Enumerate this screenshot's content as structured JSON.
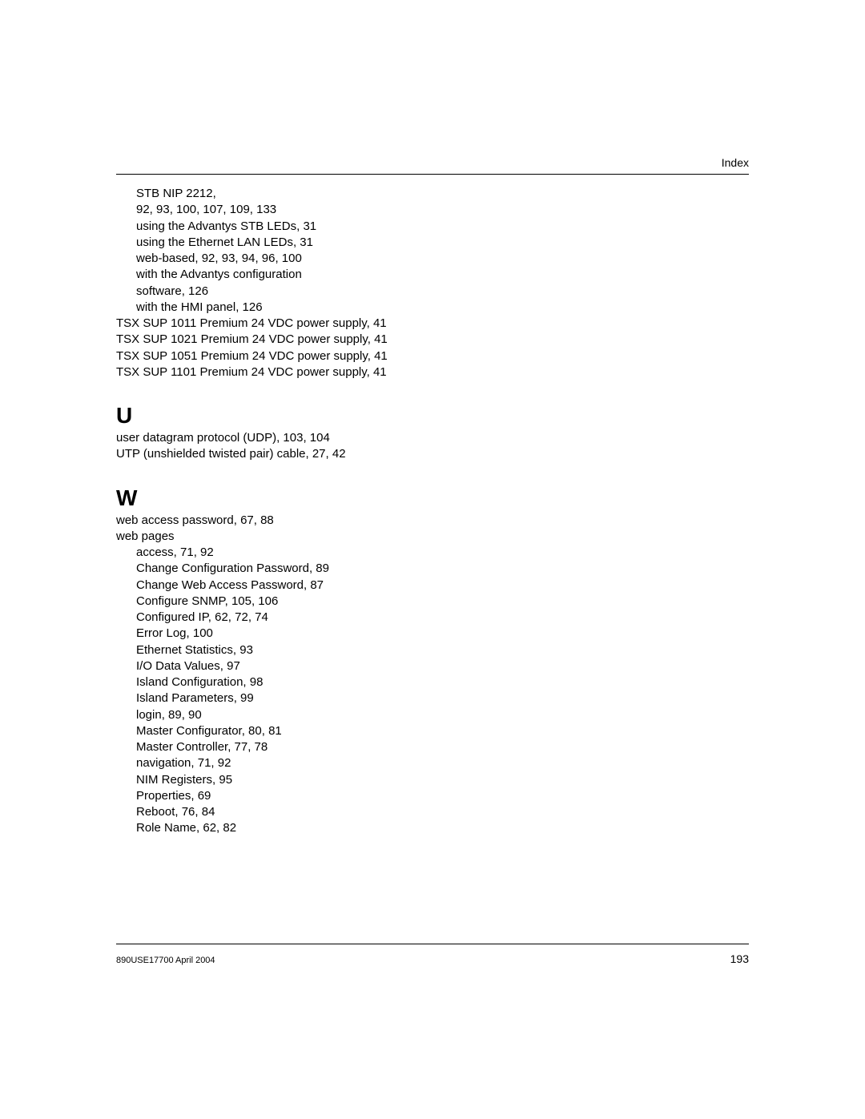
{
  "header": {
    "label": "Index"
  },
  "continuation": {
    "lines": [
      {
        "text": "STB NIP 2212,",
        "indent": 1
      },
      {
        "text": "92, 93, 100, 107, 109, 133",
        "indent": 1
      },
      {
        "text": "using the Advantys STB LEDs, 31",
        "indent": 1
      },
      {
        "text": "using the Ethernet LAN LEDs, 31",
        "indent": 1
      },
      {
        "text": "web-based, 92, 93, 94, 96, 100",
        "indent": 1
      },
      {
        "text": "with the Advantys configuration",
        "indent": 1
      },
      {
        "text": "software, 126",
        "indent": 1
      },
      {
        "text": "with the HMI panel, 126",
        "indent": 1
      },
      {
        "text": "TSX SUP 1011 Premium 24 VDC power supply, 41",
        "indent": 0
      },
      {
        "text": "TSX SUP 1021 Premium 24  VDC power supply, 41",
        "indent": 0
      },
      {
        "text": "TSX SUP 1051 Premium 24 VDC power supply, 41",
        "indent": 0
      },
      {
        "text": "TSX SUP 1101 Premium 24 VDC power supply, 41",
        "indent": 0
      }
    ]
  },
  "sections": [
    {
      "letter": "U",
      "lines": [
        {
          "text": "user datagram protocol (UDP), 103, 104",
          "indent": 0
        },
        {
          "text": "UTP (unshielded twisted pair) cable, 27, 42",
          "indent": 0
        }
      ]
    },
    {
      "letter": "W",
      "lines": [
        {
          "text": "web access password, 67, 88",
          "indent": 0
        },
        {
          "text": "web pages",
          "indent": 0
        },
        {
          "text": "access, 71, 92",
          "indent": 1
        },
        {
          "text": "Change Configuration Password, 89",
          "indent": 1
        },
        {
          "text": "Change Web Access Password, 87",
          "indent": 1
        },
        {
          "text": "Configure SNMP, 105, 106",
          "indent": 1
        },
        {
          "text": "Configured IP, 62, 72, 74",
          "indent": 1
        },
        {
          "text": "Error Log, 100",
          "indent": 1
        },
        {
          "text": "Ethernet Statistics, 93",
          "indent": 1
        },
        {
          "text": "I/O Data Values, 97",
          "indent": 1
        },
        {
          "text": "Island Configuration, 98",
          "indent": 1
        },
        {
          "text": "Island Parameters, 99",
          "indent": 1
        },
        {
          "text": "login, 89, 90",
          "indent": 1
        },
        {
          "text": "Master Configurator, 80, 81",
          "indent": 1
        },
        {
          "text": "Master Controller, 77, 78",
          "indent": 1
        },
        {
          "text": "navigation, 71, 92",
          "indent": 1
        },
        {
          "text": "NIM Registers, 95",
          "indent": 1
        },
        {
          "text": "Properties, 69",
          "indent": 1
        },
        {
          "text": "Reboot, 76, 84",
          "indent": 1
        },
        {
          "text": "Role Name, 62, 82",
          "indent": 1
        }
      ]
    }
  ],
  "footer": {
    "docid": "890USE17700 April 2004",
    "pagenum": "193"
  }
}
